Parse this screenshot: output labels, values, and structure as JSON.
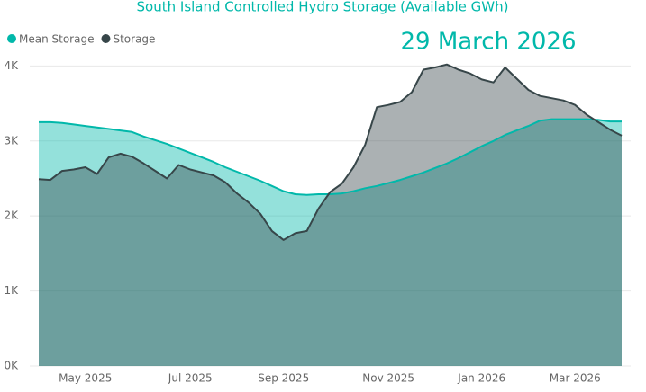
{
  "chart_data": {
    "type": "area",
    "title": "South Island Controlled Hydro Storage (Available GWh)",
    "annotation": "29 March 2026",
    "categories": [
      null,
      null,
      null,
      null,
      "May 2025",
      null,
      null,
      null,
      null,
      null,
      null,
      null,
      null,
      "Jul 2025",
      null,
      null,
      null,
      null,
      null,
      null,
      null,
      "Sep 2025",
      null,
      null,
      null,
      null,
      null,
      null,
      null,
      null,
      "Nov 2025",
      null,
      null,
      null,
      null,
      null,
      null,
      null,
      "Jan 2026",
      null,
      null,
      null,
      null,
      null,
      null,
      null,
      "Mar 2026",
      null,
      null,
      null,
      null
    ],
    "series": [
      {
        "name": "Mean Storage",
        "color": "#01B8AA",
        "values": [
          3250,
          3250,
          3240,
          3220,
          3200,
          3180,
          3160,
          3140,
          3120,
          3060,
          3010,
          2960,
          2900,
          2840,
          2780,
          2720,
          2650,
          2590,
          2530,
          2470,
          2400,
          2330,
          2290,
          2280,
          2290,
          2290,
          2300,
          2330,
          2370,
          2400,
          2440,
          2480,
          2530,
          2580,
          2640,
          2700,
          2770,
          2850,
          2930,
          3000,
          3080,
          3140,
          3200,
          3270,
          3290,
          3290,
          3290,
          3290,
          3280,
          3260,
          3260
        ]
      },
      {
        "name": "Storage",
        "color": "#374649",
        "values": [
          2490,
          2480,
          2600,
          2620,
          2650,
          2560,
          2780,
          2830,
          2790,
          2700,
          2600,
          2500,
          2680,
          2620,
          2580,
          2540,
          2450,
          2300,
          2180,
          2030,
          1800,
          1680,
          1770,
          1800,
          2100,
          2320,
          2430,
          2650,
          2950,
          3450,
          3480,
          3520,
          3650,
          3950,
          3980,
          4020,
          3950,
          3900,
          3820,
          3780,
          3980,
          3830,
          3680,
          3600,
          3570,
          3540,
          3480,
          3350,
          3250,
          3150,
          3070
        ]
      }
    ],
    "ylim": [
      0,
      4160
    ],
    "yticks": [
      {
        "value": 0,
        "label": "0K"
      },
      {
        "value": 1000,
        "label": "1K"
      },
      {
        "value": 2000,
        "label": "2K"
      },
      {
        "value": 3000,
        "label": "3K"
      },
      {
        "value": 4000,
        "label": "4K"
      }
    ],
    "grid": true
  }
}
